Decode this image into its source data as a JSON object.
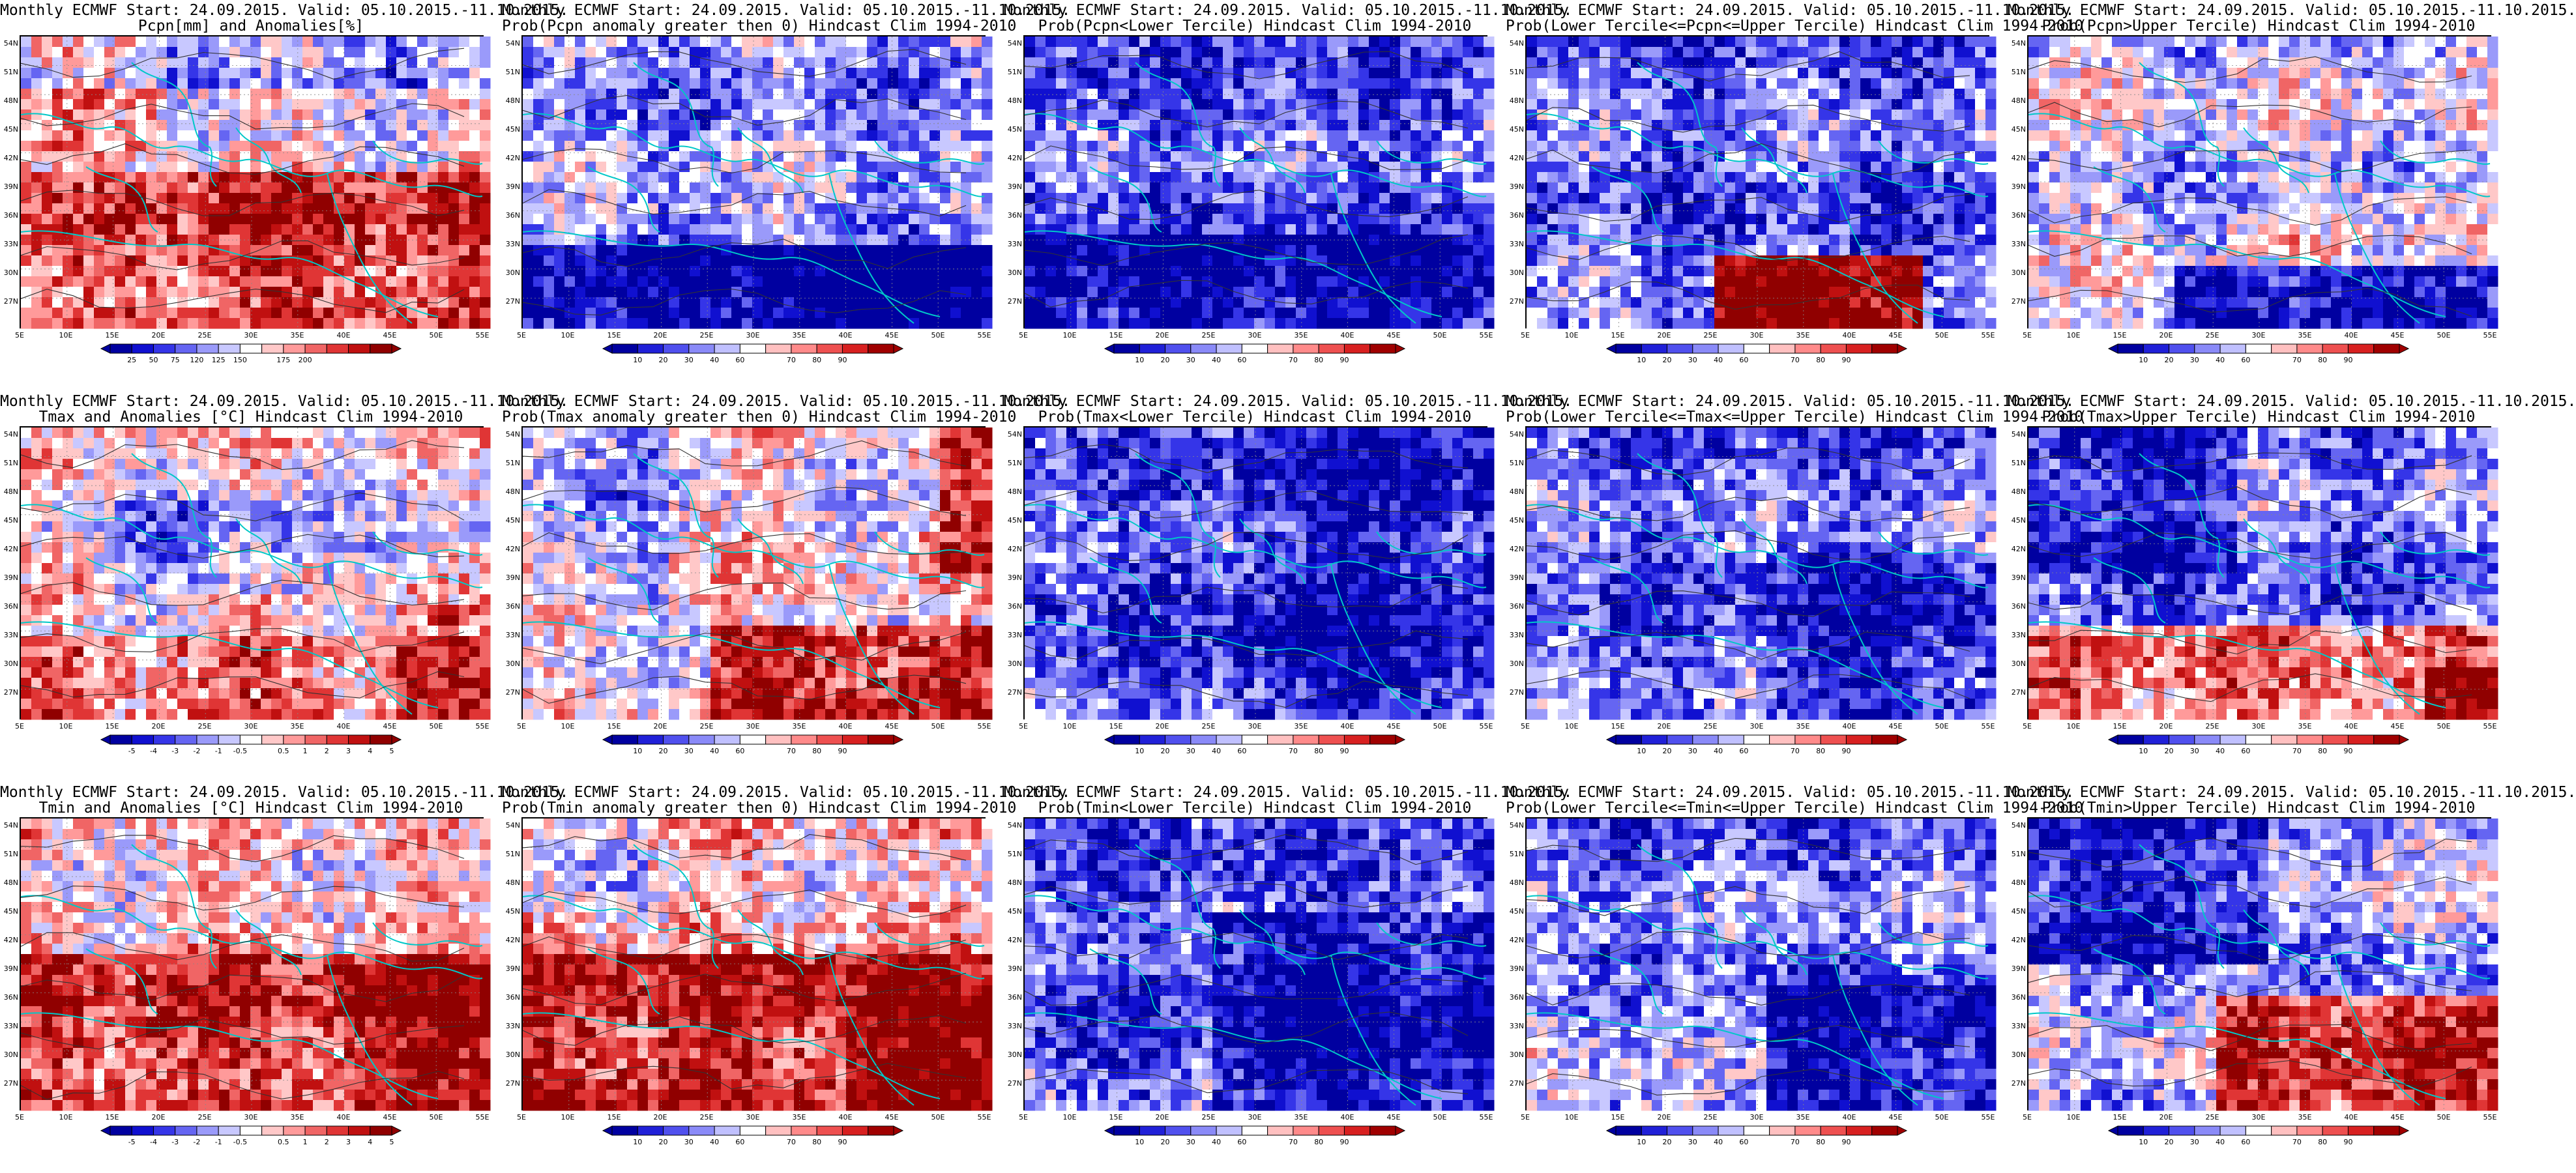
{
  "lat_labels": [
    "54N",
    "51N",
    "48N",
    "45N",
    "42N",
    "39N",
    "36N",
    "33N",
    "30N",
    "27N"
  ],
  "lon_labels": [
    "5E",
    "10E",
    "15E",
    "20E",
    "25E",
    "30E",
    "35E",
    "40E",
    "45E",
    "50E",
    "55E"
  ],
  "rows": [
    {
      "variable": "Pcpn",
      "panels": [
        {
          "title1": "Monthly ECMWF Start: 24.09.2015. Valid: 05.10.2015.-11.10.2015.",
          "title2": "Pcpn[mm] and Anomalies[%]",
          "type": "anomaly",
          "colorbar": [
            "25",
            "50",
            "75",
            "120",
            "125",
            "150",
            "175",
            "200"
          ]
        },
        {
          "title1": "Monthly ECMWF Start: 24.09.2015. Valid: 05.10.2015.-11.10.2015.",
          "title2": "Prob(Pcpn anomaly greater then 0) Hindcast Clim 1994-2010",
          "type": "prob",
          "colorbar": [
            "10",
            "20",
            "30",
            "40",
            "60",
            "70",
            "80",
            "90"
          ]
        },
        {
          "title1": "Monthly ECMWF Start: 24.09.2015. Valid: 05.10.2015.-11.10.2015.",
          "title2": "Prob(Pcpn<Lower Tercile) Hindcast Clim 1994-2010",
          "type": "prob",
          "colorbar": [
            "10",
            "20",
            "30",
            "40",
            "60",
            "70",
            "80",
            "90"
          ]
        },
        {
          "title1": "Monthly ECMWF Start: 24.09.2015. Valid: 05.10.2015.-11.10.2015.",
          "title2": "Prob(Lower Tercile<=Pcpn<=Upper Tercile) Hindcast Clim 1994-2010",
          "type": "prob",
          "colorbar": [
            "10",
            "20",
            "30",
            "40",
            "60",
            "70",
            "80",
            "90"
          ]
        },
        {
          "title1": "Monthly ECMWF Start: 24.09.2015. Valid: 05.10.2015.-11.10.2015.",
          "title2": "Prob(Pcpn>Upper Tercile) Hindcast Clim 1994-2010",
          "type": "prob",
          "colorbar": [
            "10",
            "20",
            "30",
            "40",
            "60",
            "70",
            "80",
            "90"
          ]
        }
      ]
    },
    {
      "variable": "Tmax",
      "panels": [
        {
          "title1": "Monthly ECMWF Start: 24.09.2015. Valid: 05.10.2015.-11.10.2015.",
          "title2": "Tmax and Anomalies [°C] Hindcast Clim 1994-2010",
          "type": "anomaly",
          "colorbar": [
            "-5",
            "-4",
            "-3",
            "-2",
            "-1",
            "-0.5",
            "0.5",
            "1",
            "2",
            "3",
            "4",
            "5"
          ]
        },
        {
          "title1": "Monthly ECMWF Start: 24.09.2015. Valid: 05.10.2015.-11.10.2015.",
          "title2": "Prob(Tmax anomaly greater then 0) Hindcast Clim 1994-2010",
          "type": "prob",
          "colorbar": [
            "10",
            "20",
            "30",
            "40",
            "60",
            "70",
            "80",
            "90"
          ]
        },
        {
          "title1": "Monthly ECMWF Start: 24.09.2015. Valid: 05.10.2015.-11.10.2015.",
          "title2": "Prob(Tmax<Lower Tercile) Hindcast Clim 1994-2010",
          "type": "prob",
          "colorbar": [
            "10",
            "20",
            "30",
            "40",
            "60",
            "70",
            "80",
            "90"
          ]
        },
        {
          "title1": "Monthly ECMWF Start: 24.09.2015. Valid: 05.10.2015.-11.10.2015.",
          "title2": "Prob(Lower Tercile<=Tmax<=Upper Tercile) Hindcast Clim 1994-2010",
          "type": "prob",
          "colorbar": [
            "10",
            "20",
            "30",
            "40",
            "60",
            "70",
            "80",
            "90"
          ]
        },
        {
          "title1": "Monthly ECMWF Start: 24.09.2015. Valid: 05.10.2015.-11.10.2015.",
          "title2": "Prob(Tmax>Upper Tercile) Hindcast Clim 1994-2010",
          "type": "prob",
          "colorbar": [
            "10",
            "20",
            "30",
            "40",
            "60",
            "70",
            "80",
            "90"
          ]
        }
      ]
    },
    {
      "variable": "Tmin",
      "panels": [
        {
          "title1": "Monthly ECMWF Start: 24.09.2015. Valid: 05.10.2015.-11.10.2015.",
          "title2": "Tmin and Anomalies [°C] Hindcast Clim 1994-2010",
          "type": "anomaly",
          "colorbar": [
            "-5",
            "-4",
            "-3",
            "-2",
            "-1",
            "-0.5",
            "0.5",
            "1",
            "2",
            "3",
            "4",
            "5"
          ]
        },
        {
          "title1": "Monthly ECMWF Start: 24.09.2015. Valid: 05.10.2015.-11.10.2015.",
          "title2": "Prob(Tmin anomaly greater then 0) Hindcast Clim 1994-2010",
          "type": "prob",
          "colorbar": [
            "10",
            "20",
            "30",
            "40",
            "60",
            "70",
            "80",
            "90"
          ]
        },
        {
          "title1": "Monthly ECMWF Start: 24.09.2015. Valid: 05.10.2015.-11.10.2015.",
          "title2": "Prob(Tmin<Lower Tercile) Hindcast Clim 1994-2010",
          "type": "prob",
          "colorbar": [
            "10",
            "20",
            "30",
            "40",
            "60",
            "70",
            "80",
            "90"
          ]
        },
        {
          "title1": "Monthly ECMWF Start: 24.09.2015. Valid: 05.10.2015.-11.10.2015.",
          "title2": "Prob(Lower Tercile<=Tmin<=Upper Tercile) Hindcast Clim 1994-2010",
          "type": "prob",
          "colorbar": [
            "10",
            "20",
            "30",
            "40",
            "60",
            "70",
            "80",
            "90"
          ]
        },
        {
          "title1": "Monthly ECMWF Start: 24.09.2015. Valid: 05.10.2015.-11.10.2015.",
          "title2": "Prob(Tmin>Upper Tercile) Hindcast Clim 1994-2010",
          "type": "prob",
          "colorbar": [
            "10",
            "20",
            "30",
            "40",
            "60",
            "70",
            "80",
            "90"
          ]
        }
      ]
    }
  ],
  "colors": {
    "deep_blue": "#0000a0",
    "blue": "#2020e0",
    "mid_blue": "#6060f0",
    "light_blue": "#b0b0ff",
    "white": "#ffffff",
    "light_red": "#ffb0b0",
    "mid_red": "#f06060",
    "red": "#e02020",
    "dark_red": "#a00000",
    "coast_cyan": "#00c8c8",
    "contour": "#333333"
  }
}
